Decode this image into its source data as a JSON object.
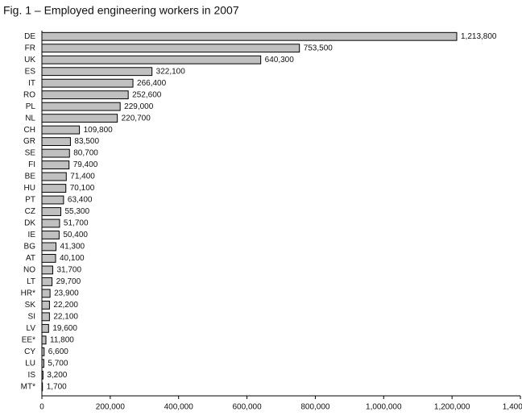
{
  "chart_data": {
    "type": "bar",
    "orientation": "horizontal",
    "title": "Fig. 1 – Employed engineering workers in 2007",
    "categories": [
      "DE",
      "FR",
      "UK",
      "ES",
      "IT",
      "RO",
      "PL",
      "NL",
      "CH",
      "GR",
      "SE",
      "FI",
      "BE",
      "HU",
      "PT",
      "CZ",
      "DK",
      "IE",
      "BG",
      "AT",
      "NO",
      "LT",
      "HR*",
      "SK",
      "SI",
      "LV",
      "EE*",
      "CY",
      "LU",
      "IS",
      "MT*"
    ],
    "values": [
      1213800,
      753500,
      640300,
      322100,
      266400,
      252600,
      229000,
      220700,
      109800,
      83500,
      80700,
      79400,
      71400,
      70100,
      63400,
      55300,
      51700,
      50400,
      41300,
      40100,
      31700,
      29700,
      23900,
      22200,
      22100,
      19600,
      11800,
      6600,
      5700,
      3200,
      1700
    ],
    "value_labels": [
      "1,213,800",
      "753,500",
      "640,300",
      "322,100",
      "266,400",
      "252,600",
      "229,000",
      "220,700",
      "109,800",
      "83,500",
      "80,700",
      "79,400",
      "71,400",
      "70,100",
      "63,400",
      "55,300",
      "51,700",
      "50,400",
      "41,300",
      "40,100",
      "31,700",
      "29,700",
      "23,900",
      "22,200",
      "22,100",
      "19,600",
      "11,800",
      "6,600",
      "5,700",
      "3,200",
      "1,700"
    ],
    "color": "#c0c0c0",
    "xlim": [
      0,
      1400000
    ],
    "xticks": [
      0,
      {
        "value": 200000,
        "label": "200,000"
      },
      {
        "value": 400000,
        "label": "400,000"
      },
      {
        "value": 600000,
        "label": "600,000"
      },
      {
        "value": 800000,
        "label": "800,000"
      },
      {
        "value": 1000000,
        "label": "1,000,000"
      },
      {
        "value": 1200000,
        "label": "1,200,000"
      },
      {
        "value": 1400000,
        "label": "1,400,000"
      }
    ],
    "grid": false
  }
}
